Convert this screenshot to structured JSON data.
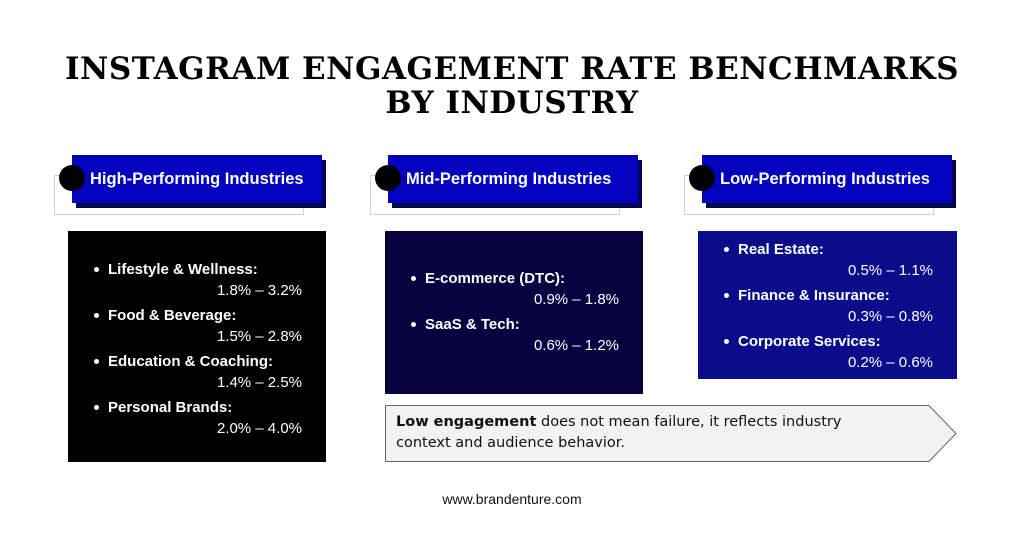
{
  "title_line1": "INSTAGRAM ENGAGEMENT RATE BENCHMARKS",
  "title_line2": "BY INDUSTRY",
  "colors": {
    "header_blue": "#0202bf",
    "high_box": "#000000",
    "mid_box": "#06023f",
    "low_box": "#0a0c8c",
    "callout_bg": "#f2f2f2"
  },
  "columns": [
    {
      "header": "High-Performing Industries",
      "items": [
        {
          "label": "Lifestyle & Wellness:",
          "value": "1.8% – 3.2%"
        },
        {
          "label": "Food & Beverage:",
          "value": "1.5% – 2.8%"
        },
        {
          "label": "Education & Coaching:",
          "value": "1.4% – 2.5%"
        },
        {
          "label": "Personal Brands:",
          "value": "2.0% – 4.0%"
        }
      ]
    },
    {
      "header": "Mid-Performing Industries",
      "items": [
        {
          "label": "E-commerce (DTC):",
          "value": "0.9% – 1.8%"
        },
        {
          "label": "SaaS & Tech:",
          "value": "0.6% – 1.2%"
        }
      ]
    },
    {
      "header": "Low-Performing Industries",
      "items": [
        {
          "label": "Real Estate:",
          "value": "0.5% – 1.1%"
        },
        {
          "label": "Finance & Insurance:",
          "value": "0.3% – 0.8%"
        },
        {
          "label": "Corporate Services:",
          "value": "0.2% – 0.6%"
        }
      ]
    }
  ],
  "callout": {
    "bold": "Low engagement",
    "rest": " does not mean failure, it reflects industry context and audience behavior."
  },
  "footer": "www.brandenture.com"
}
